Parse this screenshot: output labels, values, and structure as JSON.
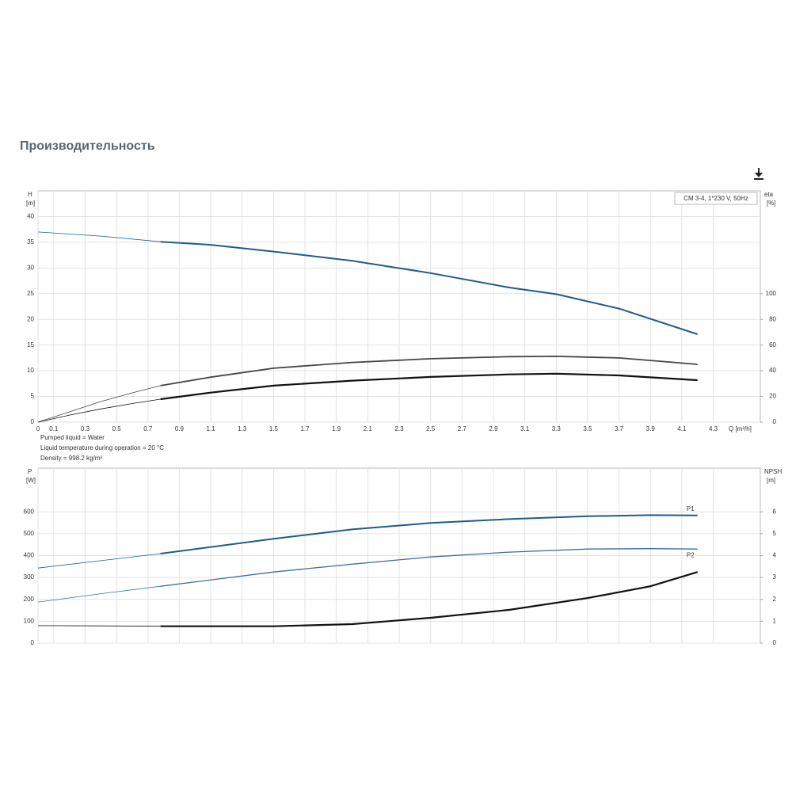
{
  "title": "Производительность",
  "notes": [
    "Pumped liquid = Water",
    "Liquid temperature during operation = 20 °C",
    "Density = 998.2 kg/m³"
  ],
  "chart_data": [
    {
      "type": "line",
      "info": "CM 3-4, 1*230 V, 50Hz",
      "ylabel": "H",
      "yunit": "[m]",
      "y2label": "eta",
      "y2unit": "[%]",
      "xlabel": "Q [m³/h]",
      "xlim": [
        0,
        4.6
      ],
      "xticks": [
        0,
        0.1,
        0.3,
        0.5,
        0.7,
        0.9,
        1.1,
        1.3,
        1.5,
        1.7,
        1.9,
        2.1,
        2.3,
        2.5,
        2.7,
        2.9,
        3.1,
        3.3,
        3.5,
        3.7,
        3.9,
        4.1,
        4.3
      ],
      "ylim": [
        0,
        45
      ],
      "yticks": [
        0,
        5,
        10,
        15,
        20,
        25,
        30,
        35,
        40
      ],
      "y2lim": [
        0,
        180
      ],
      "y2ticks": [
        0,
        20,
        40,
        60,
        80,
        100
      ],
      "grid": true,
      "series": [
        {
          "color": "#1f5c8c",
          "line_width": 0.8,
          "x": [
            0,
            0.4,
            0.78
          ],
          "values": [
            37,
            36.2,
            35.1
          ]
        },
        {
          "color": "#1f5c8c",
          "line_width": 2,
          "x": [
            0.78,
            1.1,
            1.5,
            2.0,
            2.5,
            3.0,
            3.3,
            3.7,
            4.2
          ],
          "values": [
            35.1,
            34.5,
            33.2,
            31.4,
            29.0,
            26.2,
            24.9,
            22.1,
            17.1
          ]
        },
        {
          "color": "#444444",
          "line_width": 0.8,
          "axis": "y2",
          "x": [
            0,
            0.2,
            0.4,
            0.6,
            0.78
          ],
          "values": [
            0,
            8,
            16,
            22.8,
            28.4
          ]
        },
        {
          "color": "#444444",
          "line_width": 1.8,
          "axis": "y2",
          "x": [
            0.78,
            1.1,
            1.5,
            2.0,
            2.5,
            3.0,
            3.3,
            3.7,
            4.2
          ],
          "values": [
            28.4,
            35,
            42,
            46.5,
            49.4,
            51,
            51.2,
            50,
            45
          ]
        },
        {
          "color": "#111111",
          "line_width": 0.8,
          "axis": "y2",
          "x": [
            0,
            0.2,
            0.4,
            0.6,
            0.78
          ],
          "values": [
            0,
            5.5,
            10.3,
            14.5,
            17.9
          ]
        },
        {
          "color": "#111111",
          "line_width": 2.2,
          "axis": "y2",
          "x": [
            0.78,
            1.1,
            1.5,
            2.0,
            2.5,
            3.0,
            3.3,
            3.7,
            4.2
          ],
          "values": [
            17.9,
            23,
            28.4,
            32.3,
            35.2,
            37.2,
            37.7,
            36.4,
            32.7
          ]
        }
      ]
    },
    {
      "type": "line",
      "ylabel": "P",
      "yunit": "[W]",
      "y2label": "NPSH",
      "y2unit": "[m]",
      "xlim": [
        0,
        4.6
      ],
      "ylim": [
        0,
        800
      ],
      "yticks": [
        0,
        100,
        200,
        300,
        400,
        500,
        600
      ],
      "y2lim": [
        0,
        8
      ],
      "y2ticks": [
        0,
        1,
        2,
        3,
        4,
        5,
        6
      ],
      "grid": true,
      "series": [
        {
          "color": "#1f5c8c",
          "line_width": 0.8,
          "x": [
            0,
            0.4,
            0.78
          ],
          "values": [
            343,
            377,
            409
          ]
        },
        {
          "name": "P1",
          "color": "#1f5c8c",
          "line_width": 2,
          "x": [
            0.78,
            1.5,
            2.0,
            2.5,
            3.0,
            3.5,
            3.9,
            4.2
          ],
          "values": [
            409,
            477,
            520,
            549,
            567,
            580,
            585,
            584
          ]
        },
        {
          "color": "#3d6f99",
          "line_width": 0.8,
          "x": [
            0,
            0.4,
            0.78
          ],
          "values": [
            188,
            226,
            260
          ]
        },
        {
          "name": "P2",
          "color": "#3d6f99",
          "line_width": 1.3,
          "x": [
            0.78,
            1.5,
            2.0,
            2.5,
            3.0,
            3.5,
            3.9,
            4.2
          ],
          "values": [
            260,
            325,
            361,
            394,
            416,
            430,
            432,
            430
          ]
        },
        {
          "color": "#111111",
          "line_width": 0.8,
          "axis": "y2",
          "x": [
            0,
            0.4,
            0.78
          ],
          "values": [
            0.8,
            0.79,
            0.77
          ]
        },
        {
          "color": "#111111",
          "line_width": 2.2,
          "axis": "y2",
          "x": [
            0.78,
            1.5,
            2.0,
            2.5,
            3.0,
            3.5,
            3.9,
            4.2
          ],
          "values": [
            0.77,
            0.77,
            0.87,
            1.16,
            1.52,
            2.06,
            2.6,
            3.25
          ]
        }
      ]
    }
  ]
}
